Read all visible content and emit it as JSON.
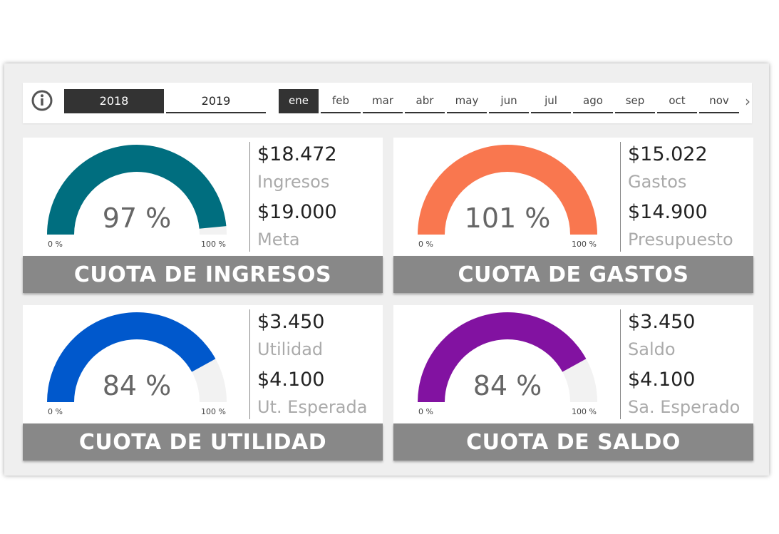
{
  "years": [
    "2018",
    "2019"
  ],
  "selected_year": "2018",
  "months": [
    "ene",
    "feb",
    "mar",
    "abr",
    "may",
    "jun",
    "jul",
    "ago",
    "sep",
    "oct",
    "nov"
  ],
  "selected_month": "ene",
  "cards": [
    {
      "title": "CUOTA DE INGRESOS",
      "percent_text": "97 %",
      "fraction": 0.97,
      "color": "#006E7F",
      "value1": "$18.472",
      "label1": "Ingresos",
      "value2": "$19.000",
      "label2": "Meta",
      "min_label": "0 %",
      "max_label": "100 %"
    },
    {
      "title": "CUOTA DE GASTOS",
      "percent_text": "101 %",
      "fraction": 1.0,
      "color": "#F9774F",
      "value1": "$15.022",
      "label1": "Gastos",
      "value2": "$14.900",
      "label2": "Presupuesto",
      "min_label": "0 %",
      "max_label": "100 %"
    },
    {
      "title": "CUOTA DE UTILIDAD",
      "percent_text": "84 %",
      "fraction": 0.84,
      "color": "#0058CC",
      "value1": "$3.450",
      "label1": "Utilidad",
      "value2": "$4.100",
      "label2": "Ut. Esperada",
      "min_label": "0 %",
      "max_label": "100 %"
    },
    {
      "title": "CUOTA DE SALDO",
      "percent_text": "84 %",
      "fraction": 0.84,
      "color": "#8212A1",
      "value1": "$3.450",
      "label1": "Saldo",
      "value2": "$4.100",
      "label2": "Sa. Esperado",
      "min_label": "0 %",
      "max_label": "100 %"
    }
  ],
  "gauge_track_color": "#f2f2f2",
  "banner_color": "#888888"
}
